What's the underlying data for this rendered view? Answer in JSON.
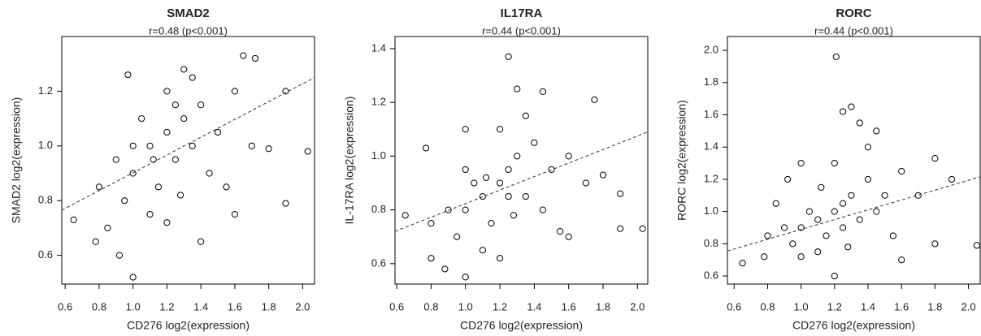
{
  "chart_data": [
    {
      "type": "scatter",
      "title": "SMAD2",
      "subtitle": "r=0.48 (p<0.001)",
      "x_label": "CD276 log2(expression)",
      "y_label": "SMAD2 log2(expression)",
      "color": "#000000",
      "xlim": [
        0.58,
        2.07
      ],
      "ylim": [
        0.495,
        1.4
      ],
      "xticks": [
        0.6,
        0.8,
        {
          "value": 1,
          "label": "1.0"
        },
        1.2,
        1.4,
        1.6,
        1.8,
        {
          "value": 2,
          "label": "2.0"
        }
      ],
      "yticks": [
        0.6,
        0.8,
        {
          "value": 1,
          "label": "1.0"
        },
        1.2
      ],
      "x": [
        1.0,
        1.1,
        1.2,
        1.25,
        1.3,
        1.15,
        1.05,
        0.95,
        0.9,
        1.35,
        1.4,
        1.45,
        1.5,
        1.2,
        1.1,
        0.8,
        0.78,
        0.85,
        1.6,
        1.7,
        1.65,
        1.72,
        1.9,
        2.03,
        1.9,
        0.65,
        1.0,
        0.97,
        1.3,
        1.4,
        1.2,
        1.55,
        1.25,
        1.0,
        1.12,
        1.28,
        0.92,
        1.8,
        1.6,
        1.35
      ],
      "values": [
        0.9,
        1.0,
        1.05,
        0.95,
        1.1,
        0.85,
        1.1,
        0.8,
        0.95,
        1.0,
        1.15,
        0.9,
        1.05,
        1.2,
        0.75,
        0.85,
        0.65,
        0.7,
        1.2,
        1.0,
        1.33,
        1.32,
        1.2,
        0.98,
        0.79,
        0.73,
        0.52,
        1.26,
        1.28,
        0.65,
        0.72,
        0.85,
        1.15,
        1.0,
        0.95,
        0.82,
        0.6,
        0.99,
        0.75,
        1.25
      ],
      "trend": {
        "x": [
          0.58,
          2.07
        ],
        "y": [
          0.765,
          1.25
        ]
      }
    },
    {
      "type": "scatter",
      "title": "IL17RA",
      "subtitle": "r=0.44 (p<0.001)",
      "x_label": "CD276 log2(expression)",
      "y_label": "IL-17RA log2(expression)",
      "color": "#000000",
      "xlim": [
        0.59,
        2.06
      ],
      "ylim": [
        0.524,
        1.445
      ],
      "xticks": [
        0.6,
        0.8,
        {
          "value": 1,
          "label": "1.0"
        },
        1.2,
        1.4,
        1.6,
        1.8,
        {
          "value": 2,
          "label": "2.0"
        }
      ],
      "yticks": [
        0.6,
        0.8,
        {
          "value": 1,
          "label": "1.0"
        },
        1.2,
        1.4
      ],
      "x": [
        1.0,
        1.1,
        1.2,
        1.25,
        1.3,
        1.15,
        1.05,
        0.95,
        0.9,
        1.35,
        1.4,
        1.45,
        1.5,
        1.2,
        1.1,
        0.8,
        0.77,
        0.8,
        1.6,
        1.7,
        1.75,
        1.25,
        1.9,
        2.03,
        1.9,
        0.65,
        1.0,
        1.0,
        1.3,
        1.45,
        1.2,
        1.55,
        1.25,
        1.0,
        1.12,
        1.28,
        0.88,
        1.8,
        1.6,
        1.35
      ],
      "values": [
        0.8,
        0.85,
        0.9,
        0.95,
        1.0,
        0.75,
        0.9,
        0.7,
        0.8,
        0.85,
        1.05,
        0.8,
        0.95,
        1.1,
        0.65,
        0.75,
        1.03,
        0.62,
        1.0,
        0.9,
        1.21,
        1.37,
        0.73,
        0.73,
        0.86,
        0.78,
        0.55,
        1.1,
        1.25,
        1.24,
        0.62,
        0.72,
        0.85,
        0.95,
        0.92,
        0.78,
        0.58,
        0.93,
        0.7,
        1.15
      ],
      "trend": {
        "x": [
          0.59,
          2.06
        ],
        "y": [
          0.72,
          1.09
        ]
      }
    },
    {
      "type": "scatter",
      "title": "RORC",
      "subtitle": "r=0.44 (p<0.001)",
      "x_label": "CD276 log2(expression)",
      "y_label": "RORC log2(expression)",
      "color": "#000000",
      "xlim": [
        0.56,
        2.07
      ],
      "ylim": [
        0.55,
        2.086
      ],
      "xticks": [
        0.6,
        0.8,
        {
          "value": 1,
          "label": "1.0"
        },
        1.2,
        1.4,
        1.6,
        1.8,
        {
          "value": 2,
          "label": "2.0"
        }
      ],
      "yticks": [
        0.6,
        0.8,
        {
          "value": 1,
          "label": "1.0"
        },
        1.2,
        1.4,
        1.6,
        1.8,
        {
          "value": 2,
          "label": "2.0"
        }
      ],
      "x": [
        1.0,
        1.1,
        1.2,
        1.25,
        1.3,
        1.15,
        1.05,
        0.95,
        0.9,
        1.35,
        1.4,
        1.45,
        1.5,
        1.2,
        1.1,
        0.8,
        0.78,
        0.85,
        1.6,
        1.7,
        1.8,
        1.21,
        1.3,
        1.25,
        1.9,
        2.05,
        0.65,
        1.0,
        1.35,
        1.45,
        1.2,
        1.55,
        1.25,
        1.0,
        1.12,
        1.28,
        0.92,
        1.8,
        1.6,
        1.4
      ],
      "values": [
        0.9,
        0.95,
        1.0,
        1.05,
        1.1,
        0.85,
        1.0,
        0.8,
        0.9,
        0.95,
        1.2,
        1.0,
        1.1,
        1.3,
        0.75,
        0.85,
        0.72,
        1.05,
        1.25,
        1.1,
        1.33,
        1.96,
        1.65,
        1.62,
        1.2,
        0.79,
        0.68,
        1.3,
        1.55,
        1.5,
        0.6,
        0.85,
        0.9,
        0.72,
        1.15,
        0.78,
        1.2,
        0.8,
        0.7,
        1.4
      ],
      "trend": {
        "x": [
          0.56,
          2.07
        ],
        "y": [
          0.755,
          1.215
        ]
      }
    }
  ]
}
